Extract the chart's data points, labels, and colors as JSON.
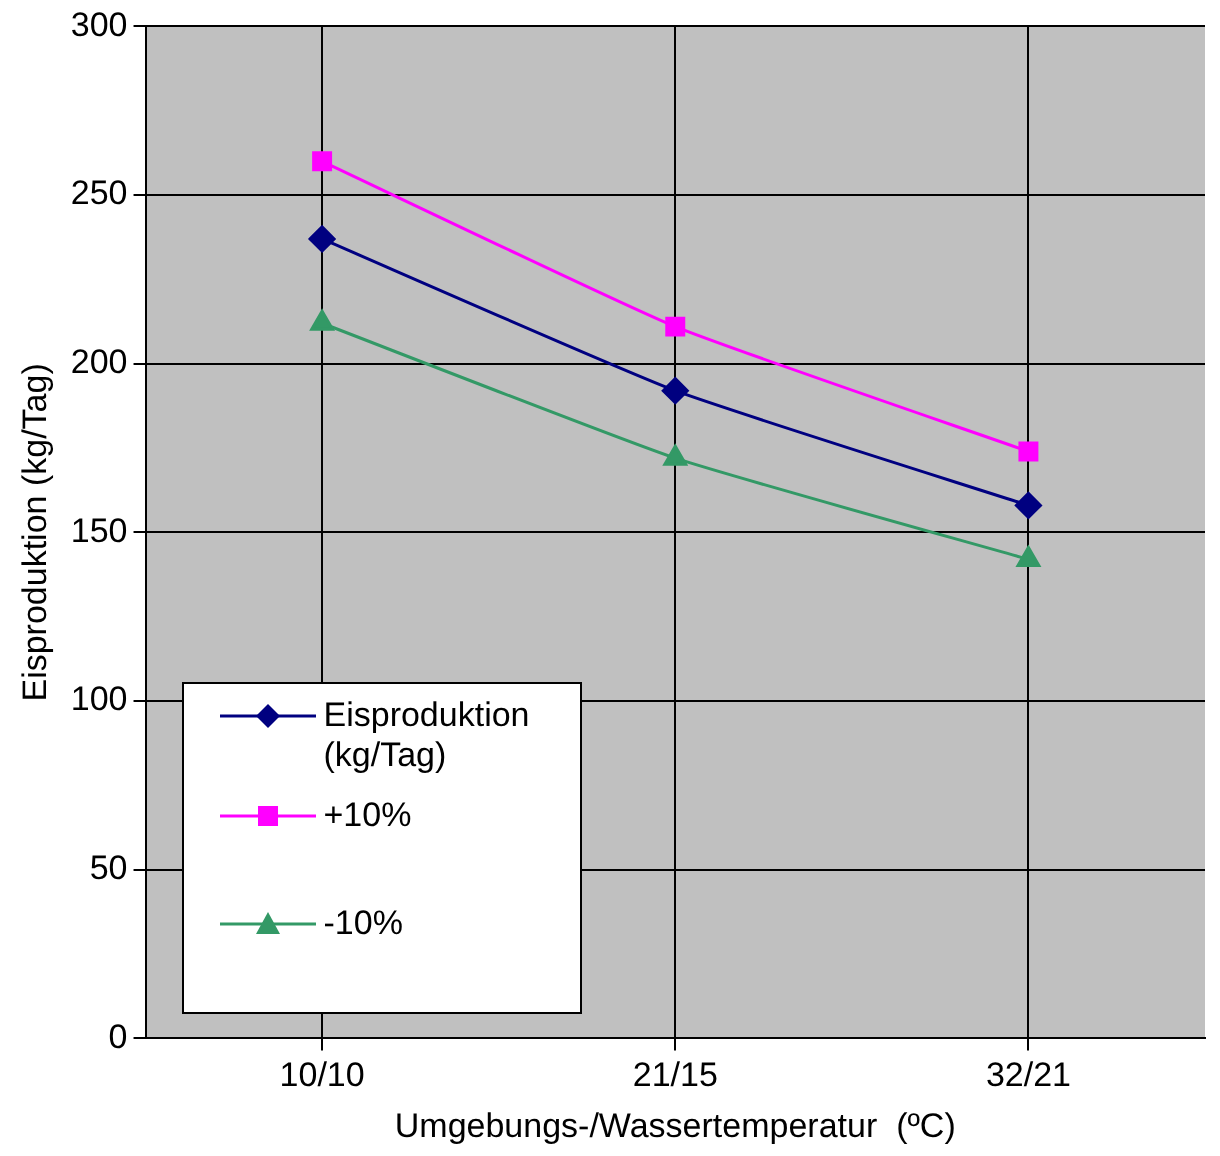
{
  "chart_data": {
    "type": "line",
    "xlabel": "Umgebungs-/Wassertemperatur  (ºC)",
    "ylabel": "Eisproduktion (kg/Tag)",
    "categories": [
      "10/10",
      "21/15",
      "32/21"
    ],
    "series": [
      {
        "name": "Eisproduktion (kg/Tag)",
        "color": "#000080",
        "marker": "diamond",
        "values": [
          237,
          192,
          158
        ]
      },
      {
        "name": "+10%",
        "color": "#ff00ff",
        "marker": "square",
        "values": [
          260,
          211,
          174
        ]
      },
      {
        "name": "-10%",
        "color": "#339966",
        "marker": "triangle",
        "values": [
          212,
          172,
          142
        ]
      }
    ],
    "ylim": [
      0,
      300
    ],
    "yticks": [
      0,
      50,
      100,
      150,
      200,
      250,
      300
    ],
    "grid": true,
    "legend": "bottom left",
    "line_style": "solid"
  }
}
